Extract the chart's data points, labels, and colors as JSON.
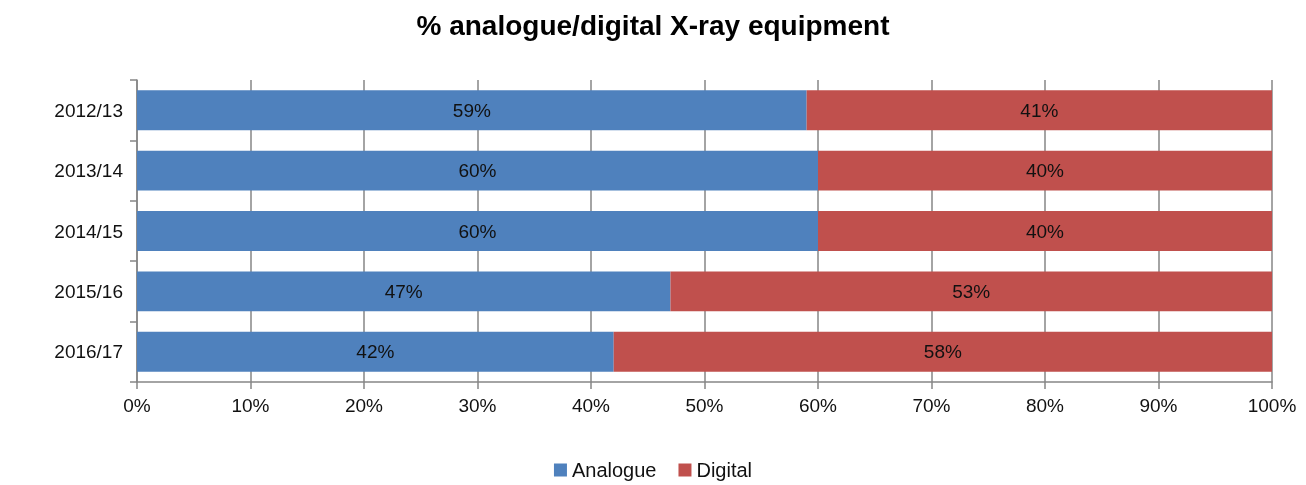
{
  "chart_data": {
    "type": "bar",
    "title": "% analogue/digital X-ray equipment",
    "orientation": "horizontal",
    "stacked": true,
    "categories": [
      "2012/13",
      "2013/14",
      "2014/15",
      "2015/16",
      "2016/17"
    ],
    "series": [
      {
        "name": "Analogue",
        "color": "#4f81bd",
        "values": [
          59,
          60,
          60,
          47,
          42
        ],
        "value_labels": [
          "59%",
          "60%",
          "60%",
          "47%",
          "42%"
        ]
      },
      {
        "name": "Digital",
        "color": "#c0504d",
        "values": [
          41,
          40,
          40,
          53,
          58
        ],
        "value_labels": [
          "41%",
          "40%",
          "40%",
          "53%",
          "58%"
        ]
      }
    ],
    "xlim": [
      0,
      100
    ],
    "xticks": [
      {
        "value": 0,
        "label": "0%"
      },
      {
        "value": 10,
        "label": "10%"
      },
      {
        "value": 20,
        "label": "20%"
      },
      {
        "value": 30,
        "label": "30%"
      },
      {
        "value": 40,
        "label": "40%"
      },
      {
        "value": 50,
        "label": "50%"
      },
      {
        "value": 60,
        "label": "60%"
      },
      {
        "value": 70,
        "label": "70%"
      },
      {
        "value": 80,
        "label": "80%"
      },
      {
        "value": 90,
        "label": "90%"
      },
      {
        "value": 100,
        "label": "100%"
      }
    ],
    "grid": "x",
    "legend": "bottom"
  }
}
